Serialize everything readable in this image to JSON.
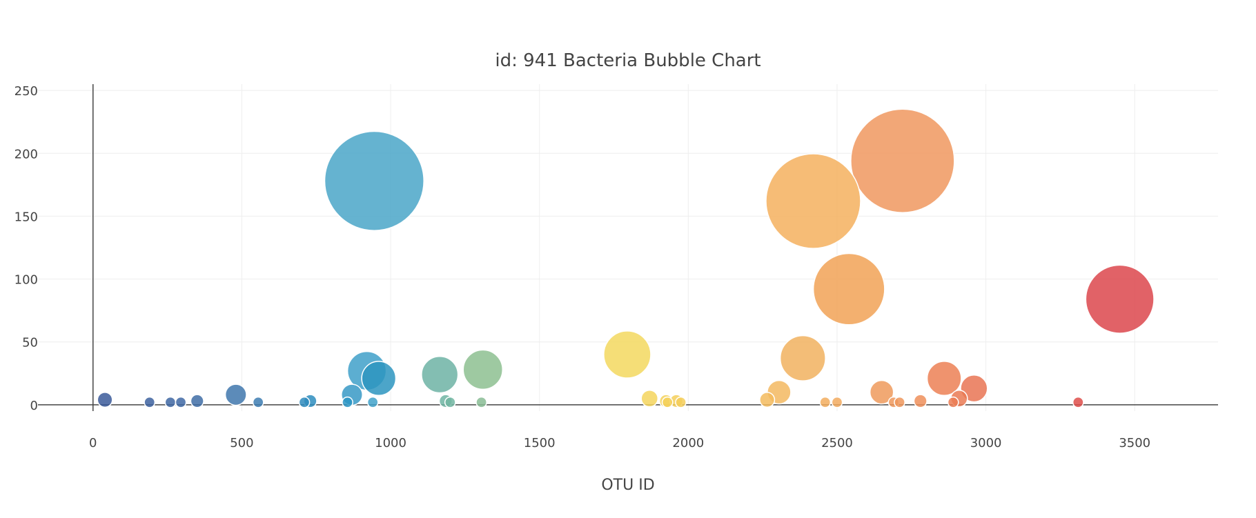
{
  "chart_data": {
    "type": "scatter",
    "title": "id: 941 Bacteria Bubble Chart",
    "xlabel": "OTU ID",
    "ylabel": "",
    "xlim": [
      -185,
      3780
    ],
    "ylim": [
      -5,
      255
    ],
    "xticks": [
      0,
      500,
      1000,
      1500,
      2000,
      2500,
      3000,
      3500
    ],
    "yticks": [
      0,
      50,
      100,
      150,
      200,
      250
    ],
    "grid": true,
    "legend": "none",
    "size_rule": "bubble area proportional to y value",
    "points": [
      {
        "x": 40,
        "y": 4,
        "color": "#3b5a9a"
      },
      {
        "x": 190,
        "y": 2,
        "color": "#3d629f"
      },
      {
        "x": 260,
        "y": 2,
        "color": "#3e66a2"
      },
      {
        "x": 295,
        "y": 2,
        "color": "#3f69a4"
      },
      {
        "x": 350,
        "y": 3,
        "color": "#406da6"
      },
      {
        "x": 480,
        "y": 8,
        "color": "#3f77ad"
      },
      {
        "x": 555,
        "y": 2,
        "color": "#3d7db1"
      },
      {
        "x": 710,
        "y": 2,
        "color": "#2f8bbd"
      },
      {
        "x": 730,
        "y": 3,
        "color": "#2e8dbe"
      },
      {
        "x": 855,
        "y": 2,
        "color": "#2b95c4"
      },
      {
        "x": 870,
        "y": 8,
        "color": "#3799c6"
      },
      {
        "x": 920,
        "y": 27,
        "color": "#3fa0c9"
      },
      {
        "x": 940,
        "y": 2,
        "color": "#41a2ca"
      },
      {
        "x": 945,
        "y": 178,
        "color": "#4aa6c8"
      },
      {
        "x": 960,
        "y": 21,
        "color": "#2d95c0"
      },
      {
        "x": 1165,
        "y": 24,
        "color": "#6db3a4"
      },
      {
        "x": 1185,
        "y": 3,
        "color": "#70b5a3"
      },
      {
        "x": 1200,
        "y": 2,
        "color": "#72b6a2"
      },
      {
        "x": 1305,
        "y": 2,
        "color": "#88bc94"
      },
      {
        "x": 1310,
        "y": 28,
        "color": "#8dbf91"
      },
      {
        "x": 1795,
        "y": 40,
        "color": "#f3d85f"
      },
      {
        "x": 1870,
        "y": 5,
        "color": "#f4d55d"
      },
      {
        "x": 1925,
        "y": 3,
        "color": "#f4d25c"
      },
      {
        "x": 1930,
        "y": 2,
        "color": "#f4d05b"
      },
      {
        "x": 1960,
        "y": 3,
        "color": "#f4cf5b"
      },
      {
        "x": 1975,
        "y": 2,
        "color": "#f4ce5a"
      },
      {
        "x": 2265,
        "y": 4,
        "color": "#f3bb5e"
      },
      {
        "x": 2305,
        "y": 10,
        "color": "#f3b960"
      },
      {
        "x": 2385,
        "y": 37,
        "color": "#f1b25f"
      },
      {
        "x": 2420,
        "y": 162,
        "color": "#f4b05e"
      },
      {
        "x": 2460,
        "y": 2,
        "color": "#f2ad5e"
      },
      {
        "x": 2500,
        "y": 2,
        "color": "#f2aa5f"
      },
      {
        "x": 2540,
        "y": 92,
        "color": "#f1a256"
      },
      {
        "x": 2650,
        "y": 10,
        "color": "#ef9a5c"
      },
      {
        "x": 2690,
        "y": 2,
        "color": "#ef985c"
      },
      {
        "x": 2710,
        "y": 2,
        "color": "#ef975c"
      },
      {
        "x": 2720,
        "y": 194,
        "color": "#f0985f"
      },
      {
        "x": 2780,
        "y": 3,
        "color": "#ee8f5a"
      },
      {
        "x": 2860,
        "y": 21,
        "color": "#ec8055"
      },
      {
        "x": 2890,
        "y": 2,
        "color": "#eb7c54"
      },
      {
        "x": 2910,
        "y": 5,
        "color": "#ea7a54"
      },
      {
        "x": 2960,
        "y": 13,
        "color": "#e97453"
      },
      {
        "x": 3310,
        "y": 2,
        "color": "#de4e4a"
      },
      {
        "x": 3450,
        "y": 84,
        "color": "#dc474c"
      }
    ]
  }
}
